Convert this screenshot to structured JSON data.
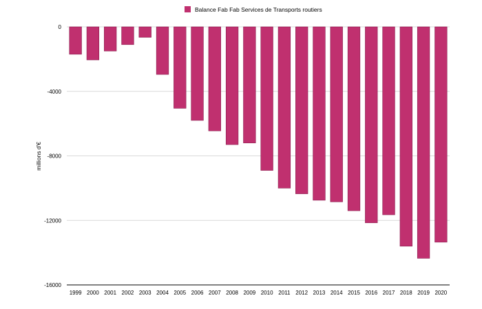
{
  "chart_data": {
    "type": "bar",
    "title": "",
    "xlabel": "",
    "ylabel": "millions d'€",
    "ylim": [
      -16000,
      0
    ],
    "yticks": [
      0,
      -4000,
      -8000,
      -12000,
      -16000
    ],
    "grid": true,
    "legend": "top-center",
    "colors": {
      "bar": "#c0306f",
      "bar_stroke": "#8a1f4f",
      "grid": "#d9d9d9",
      "axis": "#000000"
    },
    "categories": [
      "1999",
      "2000",
      "2001",
      "2002",
      "2003",
      "2004",
      "2005",
      "2006",
      "2007",
      "2008",
      "2009",
      "2010",
      "2011",
      "2012",
      "2013",
      "2014",
      "2015",
      "2016",
      "2017",
      "2018",
      "2019",
      "2020"
    ],
    "series": [
      {
        "name": "Balance Fab Fab Services de Transports routiers",
        "values": [
          -1700,
          -2050,
          -1500,
          -1100,
          -650,
          -2950,
          -5050,
          -5800,
          -6450,
          -7300,
          -7200,
          -8900,
          -10000,
          -10350,
          -10750,
          -10850,
          -11400,
          -12150,
          -11650,
          -13600,
          -14350,
          -13350
        ]
      }
    ]
  }
}
